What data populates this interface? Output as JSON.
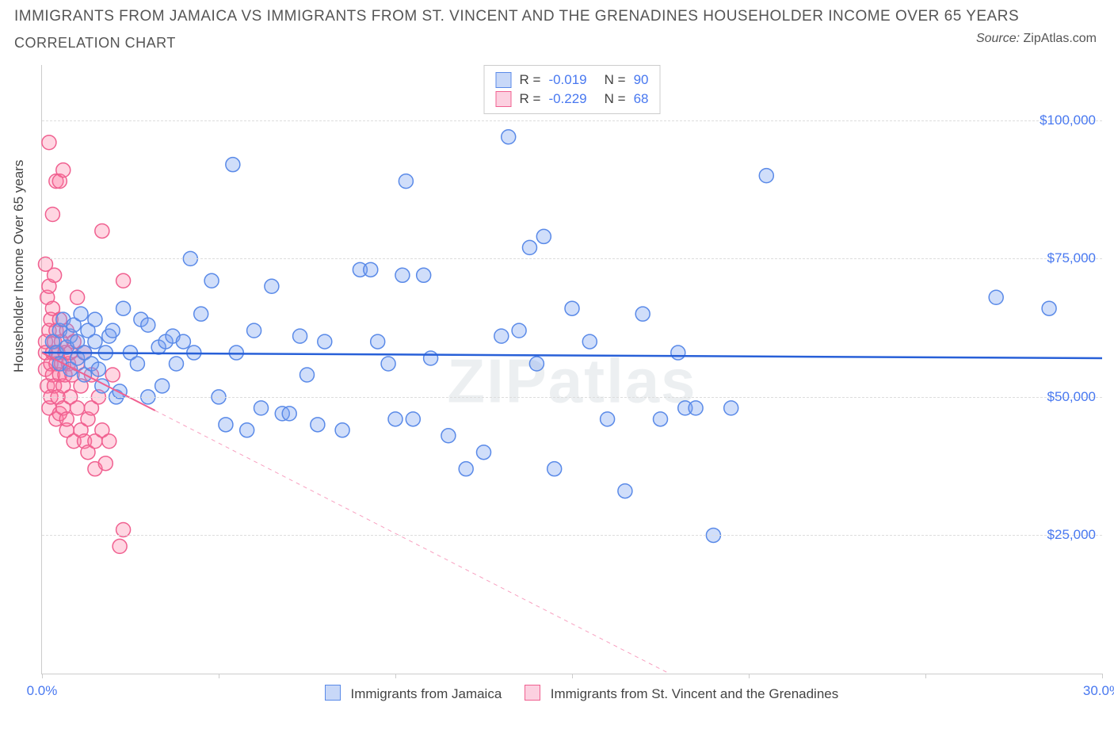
{
  "title": "IMMIGRANTS FROM JAMAICA VS IMMIGRANTS FROM ST. VINCENT AND THE GRENADINES HOUSEHOLDER INCOME OVER 65 YEARS",
  "subtitle": "CORRELATION CHART",
  "source_prefix": "Source: ",
  "source_name": "ZipAtlas.com",
  "watermark": "ZIPatlas",
  "ylabel": "Householder Income Over 65 years",
  "chart": {
    "type": "scatter",
    "xlim": [
      0,
      30
    ],
    "ylim": [
      0,
      110000
    ],
    "xticks": [
      0,
      5,
      10,
      15,
      20,
      25,
      30
    ],
    "xtick_labels": {
      "0": "0.0%",
      "30": "30.0%"
    },
    "yticks": [
      25000,
      50000,
      75000,
      100000
    ],
    "ytick_labels": [
      "$25,000",
      "$50,000",
      "$75,000",
      "$100,000"
    ],
    "grid_color": "#dddddd",
    "background_color": "#ffffff",
    "marker_radius": 9,
    "series": [
      {
        "name": "Immigrants from Jamaica",
        "color_fill": "rgba(120,160,240,0.35)",
        "color_stroke": "#5a8ae8",
        "swatch_fill": "#c8d8f8",
        "swatch_stroke": "#5a8ae8",
        "R": "-0.019",
        "N": "90",
        "trend": {
          "y_at_x0": 58000,
          "y_at_x30": 57000,
          "style": "solid"
        },
        "points": [
          [
            0.3,
            60000
          ],
          [
            0.4,
            58000
          ],
          [
            0.5,
            62000
          ],
          [
            0.5,
            56000
          ],
          [
            0.6,
            64000
          ],
          [
            0.7,
            59000
          ],
          [
            0.8,
            61000
          ],
          [
            0.8,
            55000
          ],
          [
            0.9,
            63000
          ],
          [
            1.0,
            60000
          ],
          [
            1.0,
            57000
          ],
          [
            1.1,
            65000
          ],
          [
            1.2,
            58000
          ],
          [
            1.2,
            54000
          ],
          [
            1.3,
            62000
          ],
          [
            1.4,
            56000
          ],
          [
            1.5,
            60000
          ],
          [
            1.5,
            64000
          ],
          [
            1.6,
            55000
          ],
          [
            1.7,
            52000
          ],
          [
            1.8,
            58000
          ],
          [
            1.9,
            61000
          ],
          [
            2.0,
            62000
          ],
          [
            2.1,
            50000
          ],
          [
            2.2,
            51000
          ],
          [
            2.3,
            66000
          ],
          [
            2.5,
            58000
          ],
          [
            2.7,
            56000
          ],
          [
            2.8,
            64000
          ],
          [
            3.0,
            63000
          ],
          [
            3.0,
            50000
          ],
          [
            3.3,
            59000
          ],
          [
            3.4,
            52000
          ],
          [
            3.5,
            60000
          ],
          [
            3.7,
            61000
          ],
          [
            3.8,
            56000
          ],
          [
            4.0,
            60000
          ],
          [
            4.2,
            75000
          ],
          [
            4.3,
            58000
          ],
          [
            4.5,
            65000
          ],
          [
            4.8,
            71000
          ],
          [
            5.0,
            50000
          ],
          [
            5.2,
            45000
          ],
          [
            5.4,
            92000
          ],
          [
            5.5,
            58000
          ],
          [
            5.8,
            44000
          ],
          [
            6.0,
            62000
          ],
          [
            6.2,
            48000
          ],
          [
            6.5,
            70000
          ],
          [
            6.8,
            47000
          ],
          [
            7.0,
            47000
          ],
          [
            7.3,
            61000
          ],
          [
            7.5,
            54000
          ],
          [
            7.8,
            45000
          ],
          [
            8.0,
            60000
          ],
          [
            8.5,
            44000
          ],
          [
            9.0,
            73000
          ],
          [
            9.3,
            73000
          ],
          [
            9.5,
            60000
          ],
          [
            9.8,
            56000
          ],
          [
            10.0,
            46000
          ],
          [
            10.2,
            72000
          ],
          [
            10.3,
            89000
          ],
          [
            10.5,
            46000
          ],
          [
            10.8,
            72000
          ],
          [
            11.0,
            57000
          ],
          [
            11.5,
            43000
          ],
          [
            12.0,
            37000
          ],
          [
            12.5,
            40000
          ],
          [
            13.0,
            61000
          ],
          [
            13.2,
            97000
          ],
          [
            13.5,
            62000
          ],
          [
            13.8,
            77000
          ],
          [
            14.0,
            56000
          ],
          [
            14.2,
            79000
          ],
          [
            14.5,
            37000
          ],
          [
            15.0,
            66000
          ],
          [
            15.5,
            60000
          ],
          [
            16.0,
            46000
          ],
          [
            16.5,
            33000
          ],
          [
            17.0,
            65000
          ],
          [
            17.5,
            46000
          ],
          [
            18.0,
            58000
          ],
          [
            18.2,
            48000
          ],
          [
            18.5,
            48000
          ],
          [
            19.0,
            25000
          ],
          [
            19.5,
            48000
          ],
          [
            20.5,
            90000
          ],
          [
            27.0,
            68000
          ],
          [
            28.5,
            66000
          ]
        ]
      },
      {
        "name": "Immigrants from St. Vincent and the Grenadines",
        "color_fill": "rgba(255,120,160,0.3)",
        "color_stroke": "#f06090",
        "swatch_fill": "#fcd0e0",
        "swatch_stroke": "#f06090",
        "R": "-0.229",
        "N": "68",
        "trend": {
          "y_at_x0": 58000,
          "y_at_x30": -40000,
          "solid_until_x": 3.2,
          "style": "dashed_after"
        },
        "points": [
          [
            0.1,
            60000
          ],
          [
            0.1,
            74000
          ],
          [
            0.1,
            58000
          ],
          [
            0.1,
            55000
          ],
          [
            0.15,
            52000
          ],
          [
            0.15,
            68000
          ],
          [
            0.2,
            62000
          ],
          [
            0.2,
            70000
          ],
          [
            0.2,
            48000
          ],
          [
            0.2,
            96000
          ],
          [
            0.25,
            64000
          ],
          [
            0.25,
            56000
          ],
          [
            0.25,
            50000
          ],
          [
            0.3,
            66000
          ],
          [
            0.3,
            54000
          ],
          [
            0.3,
            58000
          ],
          [
            0.3,
            83000
          ],
          [
            0.35,
            60000
          ],
          [
            0.35,
            52000
          ],
          [
            0.35,
            72000
          ],
          [
            0.4,
            56000
          ],
          [
            0.4,
            62000
          ],
          [
            0.4,
            46000
          ],
          [
            0.4,
            89000
          ],
          [
            0.45,
            58000
          ],
          [
            0.45,
            50000
          ],
          [
            0.5,
            54000
          ],
          [
            0.5,
            64000
          ],
          [
            0.5,
            47000
          ],
          [
            0.5,
            89000
          ],
          [
            0.55,
            56000
          ],
          [
            0.55,
            60000
          ],
          [
            0.6,
            52000
          ],
          [
            0.6,
            48000
          ],
          [
            0.6,
            91000
          ],
          [
            0.65,
            58000
          ],
          [
            0.65,
            54000
          ],
          [
            0.7,
            44000
          ],
          [
            0.7,
            62000
          ],
          [
            0.7,
            46000
          ],
          [
            0.75,
            56000
          ],
          [
            0.8,
            50000
          ],
          [
            0.8,
            58000
          ],
          [
            0.85,
            54000
          ],
          [
            0.9,
            42000
          ],
          [
            0.9,
            60000
          ],
          [
            1.0,
            56000
          ],
          [
            1.0,
            68000
          ],
          [
            1.0,
            48000
          ],
          [
            1.1,
            44000
          ],
          [
            1.1,
            52000
          ],
          [
            1.2,
            42000
          ],
          [
            1.2,
            58000
          ],
          [
            1.3,
            46000
          ],
          [
            1.3,
            40000
          ],
          [
            1.4,
            54000
          ],
          [
            1.4,
            48000
          ],
          [
            1.5,
            37000
          ],
          [
            1.5,
            42000
          ],
          [
            1.6,
            50000
          ],
          [
            1.7,
            44000
          ],
          [
            1.7,
            80000
          ],
          [
            1.8,
            38000
          ],
          [
            1.9,
            42000
          ],
          [
            2.0,
            54000
          ],
          [
            2.2,
            23000
          ],
          [
            2.3,
            26000
          ],
          [
            2.3,
            71000
          ]
        ]
      }
    ]
  }
}
